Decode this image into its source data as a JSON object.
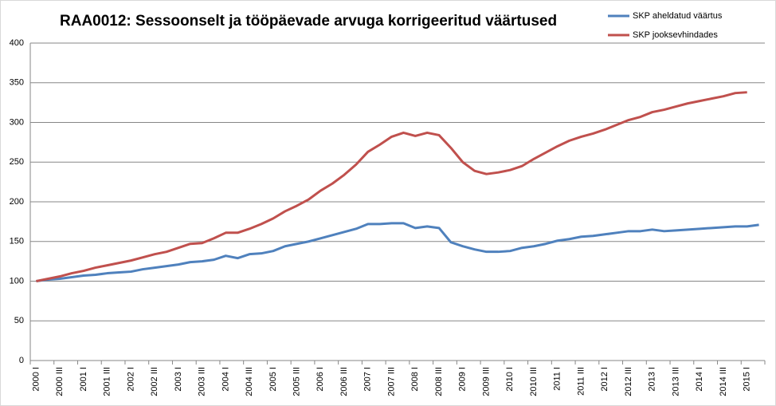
{
  "chart_data": {
    "type": "line",
    "title": "RAA0012: Sessoonselt ja tööpäevade arvuga korrigeeritud väärtused",
    "categories": [
      "2000 I",
      null,
      "2000 III",
      null,
      "2001 I",
      null,
      "2001 III",
      null,
      "2002 I",
      null,
      "2002 III",
      null,
      "2003 I",
      null,
      "2003 III",
      null,
      "2004 I",
      null,
      "2004 III",
      null,
      "2005 I",
      null,
      "2005 III",
      null,
      "2006 I",
      null,
      "2006 III",
      null,
      "2007 I",
      null,
      "2007 III",
      null,
      "2008 I",
      null,
      "2008 III",
      null,
      "2009 I",
      null,
      "2009 III",
      null,
      "2010 I",
      null,
      "2010 III",
      null,
      "2011 I",
      null,
      "2011 III",
      null,
      "2012 I",
      null,
      "2012 III",
      null,
      "2013 I",
      null,
      "2013 III",
      null,
      "2014 I",
      null,
      "2014 III",
      null,
      "2015 I",
      null
    ],
    "series": [
      {
        "name": "SKP aheldatud väärtus",
        "color": "#4f81bd",
        "values": [
          100,
          102,
          103,
          105,
          107,
          108,
          110,
          111,
          112,
          115,
          117,
          119,
          121,
          124,
          125,
          127,
          132,
          129,
          134,
          135,
          138,
          144,
          147,
          150,
          154,
          158,
          162,
          166,
          172,
          172,
          173,
          173,
          167,
          169,
          167,
          149,
          144,
          140,
          137,
          137,
          138,
          142,
          144,
          147,
          151,
          153,
          156,
          157,
          159,
          161,
          163,
          163,
          165,
          163,
          164,
          165,
          166,
          167,
          168,
          169,
          169,
          171
        ]
      },
      {
        "name": "SKP jooksevhindades",
        "color": "#c0504d",
        "values": [
          100,
          103,
          106,
          110,
          113,
          117,
          120,
          123,
          126,
          130,
          134,
          137,
          142,
          147,
          148,
          154,
          161,
          161,
          166,
          172,
          179,
          188,
          195,
          203,
          214,
          223,
          234,
          247,
          263,
          272,
          282,
          287,
          283,
          287,
          284,
          268,
          250,
          239,
          235,
          237,
          240,
          245,
          254,
          262,
          270,
          277,
          282,
          286,
          291,
          297,
          303,
          307,
          313,
          316,
          320,
          324,
          327,
          330,
          333,
          337,
          338,
          null
        ]
      }
    ],
    "ylim": [
      0,
      400
    ],
    "yticks": [
      0,
      50,
      100,
      150,
      200,
      250,
      300,
      350,
      400
    ],
    "grid": true,
    "legend": "top-right"
  }
}
